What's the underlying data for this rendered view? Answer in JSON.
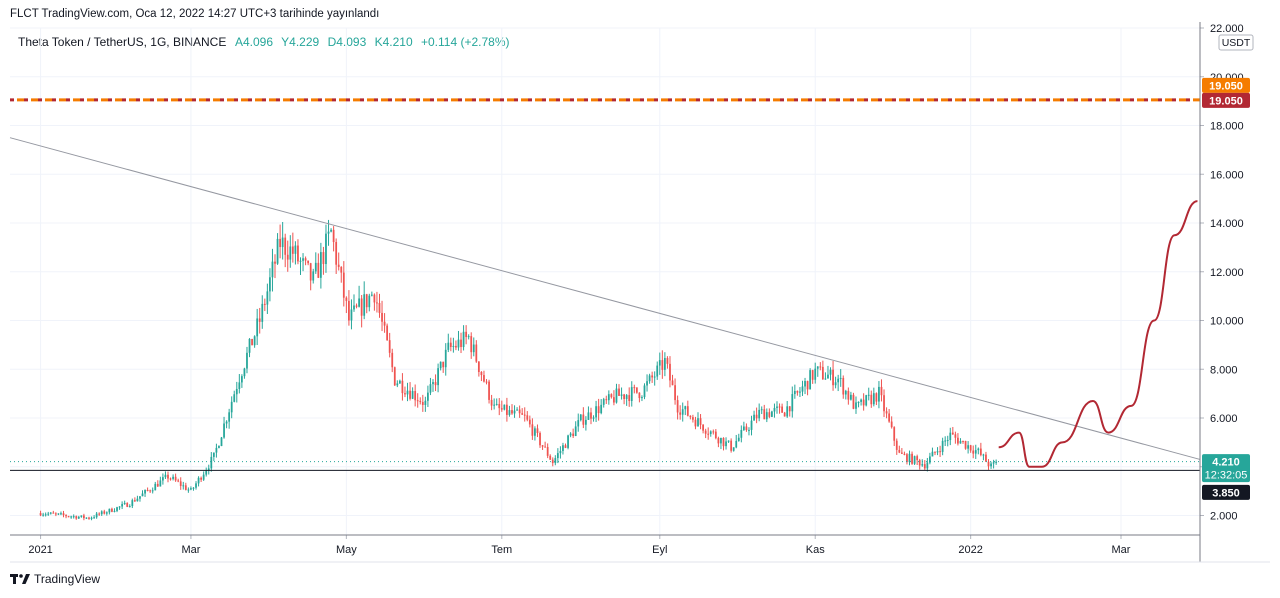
{
  "header": {
    "publish_line": "FLCT TradingView.com, Oca 12, 2022 14:27 UTC+3 tarihinde yayınlandı"
  },
  "legend": {
    "symbol": "Theta Token / TetherUS, 1G, BINANCE",
    "open": "A4.096",
    "high": "Y4.229",
    "low": "D4.093",
    "close": "K4.210",
    "change": "+0.114 (+2.78%)"
  },
  "footer": {
    "brand": "TradingView"
  },
  "colors": {
    "up": "#26a69a",
    "down": "#ef5350",
    "price_badge": "#26a69a",
    "resistance_orange": "#f57c00",
    "resistance_red": "#b22833",
    "support_badge": "#131722",
    "projection": "#b22833",
    "trendline": "#9598a1"
  },
  "chart_data": {
    "type": "candlestick",
    "currency": "USDT",
    "ylim": [
      1.2,
      22.0
    ],
    "y_ticks": [
      "2.000",
      "4.000",
      "6.000",
      "8.000",
      "10.000",
      "12.000",
      "14.000",
      "16.000",
      "18.000",
      "20.000",
      "22.000"
    ],
    "x_range": [
      "2020-12-20",
      "2022-04-01"
    ],
    "x_ticks": [
      {
        "date": "2021-01-01",
        "label": "2021"
      },
      {
        "date": "2021-03-01",
        "label": "Mar"
      },
      {
        "date": "2021-05-01",
        "label": "May"
      },
      {
        "date": "2021-07-01",
        "label": "Tem"
      },
      {
        "date": "2021-09-01",
        "label": "Eyl"
      },
      {
        "date": "2021-11-01",
        "label": "Kas"
      },
      {
        "date": "2022-01-01",
        "label": "2022"
      },
      {
        "date": "2022-03-01",
        "label": "Mar"
      }
    ],
    "last_price": {
      "value": 4.21,
      "label": "4.210",
      "countdown": "12:32:05"
    },
    "support": {
      "value": 3.85,
      "label": "3.850"
    },
    "resistance": [
      {
        "value": 19.05,
        "label": "19.050",
        "color": "orange"
      },
      {
        "value": 19.05,
        "label": "19.050",
        "color": "red"
      }
    ],
    "trendline": [
      {
        "date": "2020-12-20",
        "value": 17.5
      },
      {
        "date": "2022-04-01",
        "value": 4.3
      }
    ],
    "projection_path": [
      {
        "date": "2022-01-12",
        "value": 4.8
      },
      {
        "date": "2022-01-20",
        "value": 5.4
      },
      {
        "date": "2022-01-24",
        "value": 4.0
      },
      {
        "date": "2022-01-29",
        "value": 4.0
      },
      {
        "date": "2022-02-06",
        "value": 5.0
      },
      {
        "date": "2022-02-18",
        "value": 6.7
      },
      {
        "date": "2022-02-24",
        "value": 5.4
      },
      {
        "date": "2022-03-05",
        "value": 6.5
      },
      {
        "date": "2022-03-14",
        "value": 10.0
      },
      {
        "date": "2022-03-22",
        "value": 13.5
      },
      {
        "date": "2022-03-31",
        "value": 14.9
      }
    ],
    "price_anchors": [
      {
        "date": "2021-01-01",
        "value": 2.1
      },
      {
        "date": "2021-01-20",
        "value": 1.9
      },
      {
        "date": "2021-02-05",
        "value": 2.5
      },
      {
        "date": "2021-02-20",
        "value": 3.6
      },
      {
        "date": "2021-03-01",
        "value": 3.0
      },
      {
        "date": "2021-03-10",
        "value": 4.4
      },
      {
        "date": "2021-03-20",
        "value": 7.7
      },
      {
        "date": "2021-03-28",
        "value": 10.0
      },
      {
        "date": "2021-04-05",
        "value": 13.2
      },
      {
        "date": "2021-04-10",
        "value": 12.8
      },
      {
        "date": "2021-04-18",
        "value": 11.6
      },
      {
        "date": "2021-04-25",
        "value": 13.6
      },
      {
        "date": "2021-05-02",
        "value": 10.0
      },
      {
        "date": "2021-05-12",
        "value": 11.2
      },
      {
        "date": "2021-05-20",
        "value": 7.6
      },
      {
        "date": "2021-06-01",
        "value": 6.6
      },
      {
        "date": "2021-06-10",
        "value": 8.8
      },
      {
        "date": "2021-06-18",
        "value": 9.3
      },
      {
        "date": "2021-06-28",
        "value": 6.4
      },
      {
        "date": "2021-07-10",
        "value": 6.0
      },
      {
        "date": "2021-07-21",
        "value": 4.2
      },
      {
        "date": "2021-08-01",
        "value": 5.9
      },
      {
        "date": "2021-08-15",
        "value": 6.9
      },
      {
        "date": "2021-08-25",
        "value": 7.1
      },
      {
        "date": "2021-09-03",
        "value": 8.3
      },
      {
        "date": "2021-09-08",
        "value": 6.5
      },
      {
        "date": "2021-09-20",
        "value": 5.5
      },
      {
        "date": "2021-09-29",
        "value": 4.8
      },
      {
        "date": "2021-10-10",
        "value": 6.2
      },
      {
        "date": "2021-10-20",
        "value": 6.3
      },
      {
        "date": "2021-11-01",
        "value": 7.9
      },
      {
        "date": "2021-11-10",
        "value": 7.6
      },
      {
        "date": "2021-11-17",
        "value": 6.4
      },
      {
        "date": "2021-11-26",
        "value": 7.0
      },
      {
        "date": "2021-12-04",
        "value": 4.5
      },
      {
        "date": "2021-12-14",
        "value": 4.1
      },
      {
        "date": "2021-12-24",
        "value": 5.3
      },
      {
        "date": "2022-01-04",
        "value": 4.6
      },
      {
        "date": "2022-01-09",
        "value": 4.0
      },
      {
        "date": "2022-01-12",
        "value": 4.21
      }
    ]
  }
}
